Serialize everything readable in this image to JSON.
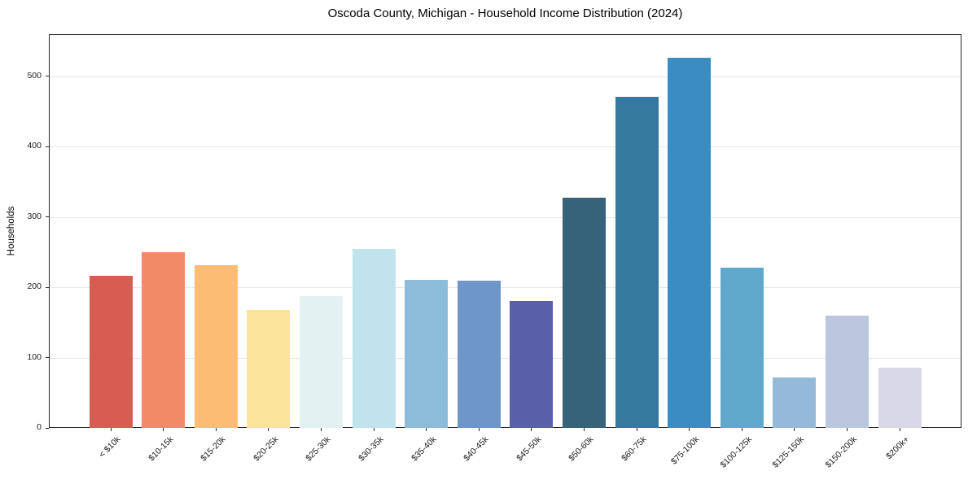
{
  "chart_data": {
    "type": "bar",
    "title": "Oscoda County, Michigan - Household Income Distribution (2024)",
    "xlabel": "",
    "ylabel": "Households",
    "categories": [
      "< $10k",
      "$10-15k",
      "$15-20k",
      "$20-25k",
      "$25-30k",
      "$30-35k",
      "$35-40k",
      "$40-45k",
      "$45-50k",
      "$50-60k",
      "$60-75k",
      "$75-100k",
      "$100-125k",
      "$125-150k",
      "$150-200k",
      "$200k+"
    ],
    "values": [
      216,
      250,
      232,
      168,
      188,
      255,
      211,
      209,
      181,
      328,
      471,
      527,
      228,
      72,
      160,
      86
    ],
    "bar_colors": [
      "#d95c53",
      "#f28a67",
      "#fbbc74",
      "#fde49b",
      "#e4f1f2",
      "#c0e3ed",
      "#8dbcdb",
      "#6e96c9",
      "#5a5fa9",
      "#37637a",
      "#337a9e",
      "#3a8cc1",
      "#60a8cb",
      "#95b9d8",
      "#bac7df",
      "#d8d8e6"
    ],
    "yticks": [
      0,
      100,
      200,
      300,
      400,
      500
    ],
    "ylim": [
      0,
      560
    ],
    "grid": true,
    "legend": "none",
    "colors": {
      "background": "#ffffff",
      "spine": "#262626",
      "grid": "#e7e7e7",
      "text": "#1a1a1a"
    }
  }
}
